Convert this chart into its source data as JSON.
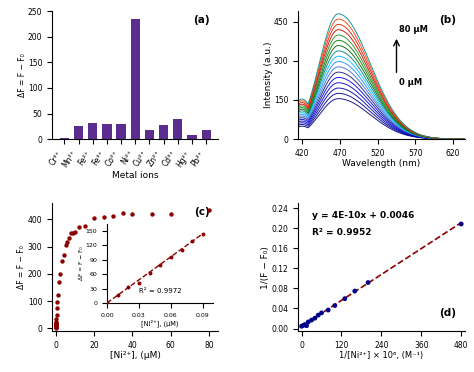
{
  "panel_a": {
    "label": "(a)",
    "categories": [
      "Cr³⁺",
      "Mn²⁺",
      "Fe²⁺",
      "Fe³⁺",
      "Co²⁺",
      "Ni²⁺",
      "Cu²⁺",
      "Zn²⁺",
      "Cd³⁺",
      "Hg²⁺",
      "Pb²⁺"
    ],
    "values": [
      2,
      25,
      31,
      30,
      30,
      235,
      17,
      27,
      40,
      8,
      18
    ],
    "bar_color": "#5B2D8E",
    "xlabel": "Metal ions",
    "ylabel": "ΔF = F − F₀",
    "ylim": [
      0,
      250
    ],
    "yticks": [
      0,
      50,
      100,
      150,
      200,
      250
    ]
  },
  "panel_b": {
    "label": "(b)",
    "xlabel": "Wavelength (nm)",
    "ylabel": "Intensity (a.u.)",
    "xlim": [
      415,
      635
    ],
    "ylim": [
      0,
      490
    ],
    "yticks": [
      0,
      150,
      300,
      450
    ],
    "xticks": [
      420,
      470,
      520,
      570,
      620
    ],
    "annotation_high": "80 μM",
    "annotation_low": "0 μM",
    "n_curves": 17,
    "peak_wavelength": 468,
    "peak_intensity_max": 480,
    "peak_intensity_min": 155,
    "shoulder_wavelength": 420,
    "shoulder_intensity_factor": 0.32
  },
  "panel_c": {
    "label": "(c)",
    "xlabel": "[Ni²⁺], (μM)",
    "ylabel": "ΔF = F − F₀",
    "xlim": [
      -2,
      85
    ],
    "ylim": [
      -10,
      460
    ],
    "yticks": [
      0,
      100,
      200,
      300,
      400
    ],
    "xticks": [
      0,
      20,
      40,
      60,
      80
    ],
    "scatter_color": "#8B0000",
    "inset": {
      "xlabel": "[Ni²⁺], (μM)",
      "ylabel": "ΔF = F − F₀",
      "r2": "R² = 0.9972",
      "xlim": [
        0,
        0.1
      ],
      "ylim": [
        0,
        165
      ],
      "xticks": [
        0,
        0.03,
        0.06,
        0.09
      ],
      "yticks": [
        0,
        30,
        60,
        90,
        120,
        150
      ],
      "line_color": "#8B0000",
      "scatter_color": "#8B0000"
    }
  },
  "panel_d": {
    "label": "(d)",
    "xlabel": "1/[Ni²⁺] × 10⁶, (M⁻¹)",
    "ylabel": "1/(F − F₀)",
    "xlim": [
      -10,
      490
    ],
    "ylim": [
      -0.005,
      0.25
    ],
    "yticks": [
      0.0,
      0.04,
      0.08,
      0.12,
      0.16,
      0.2,
      0.24
    ],
    "xticks": [
      0,
      120,
      240,
      360,
      480
    ],
    "scatter_color": "#00008B",
    "line_color": "#8B0000",
    "equation": "y = 4E-10x + 0.0046",
    "r2": "R² = 0.9952",
    "slope": 0.00043,
    "intercept": 0.0046
  }
}
